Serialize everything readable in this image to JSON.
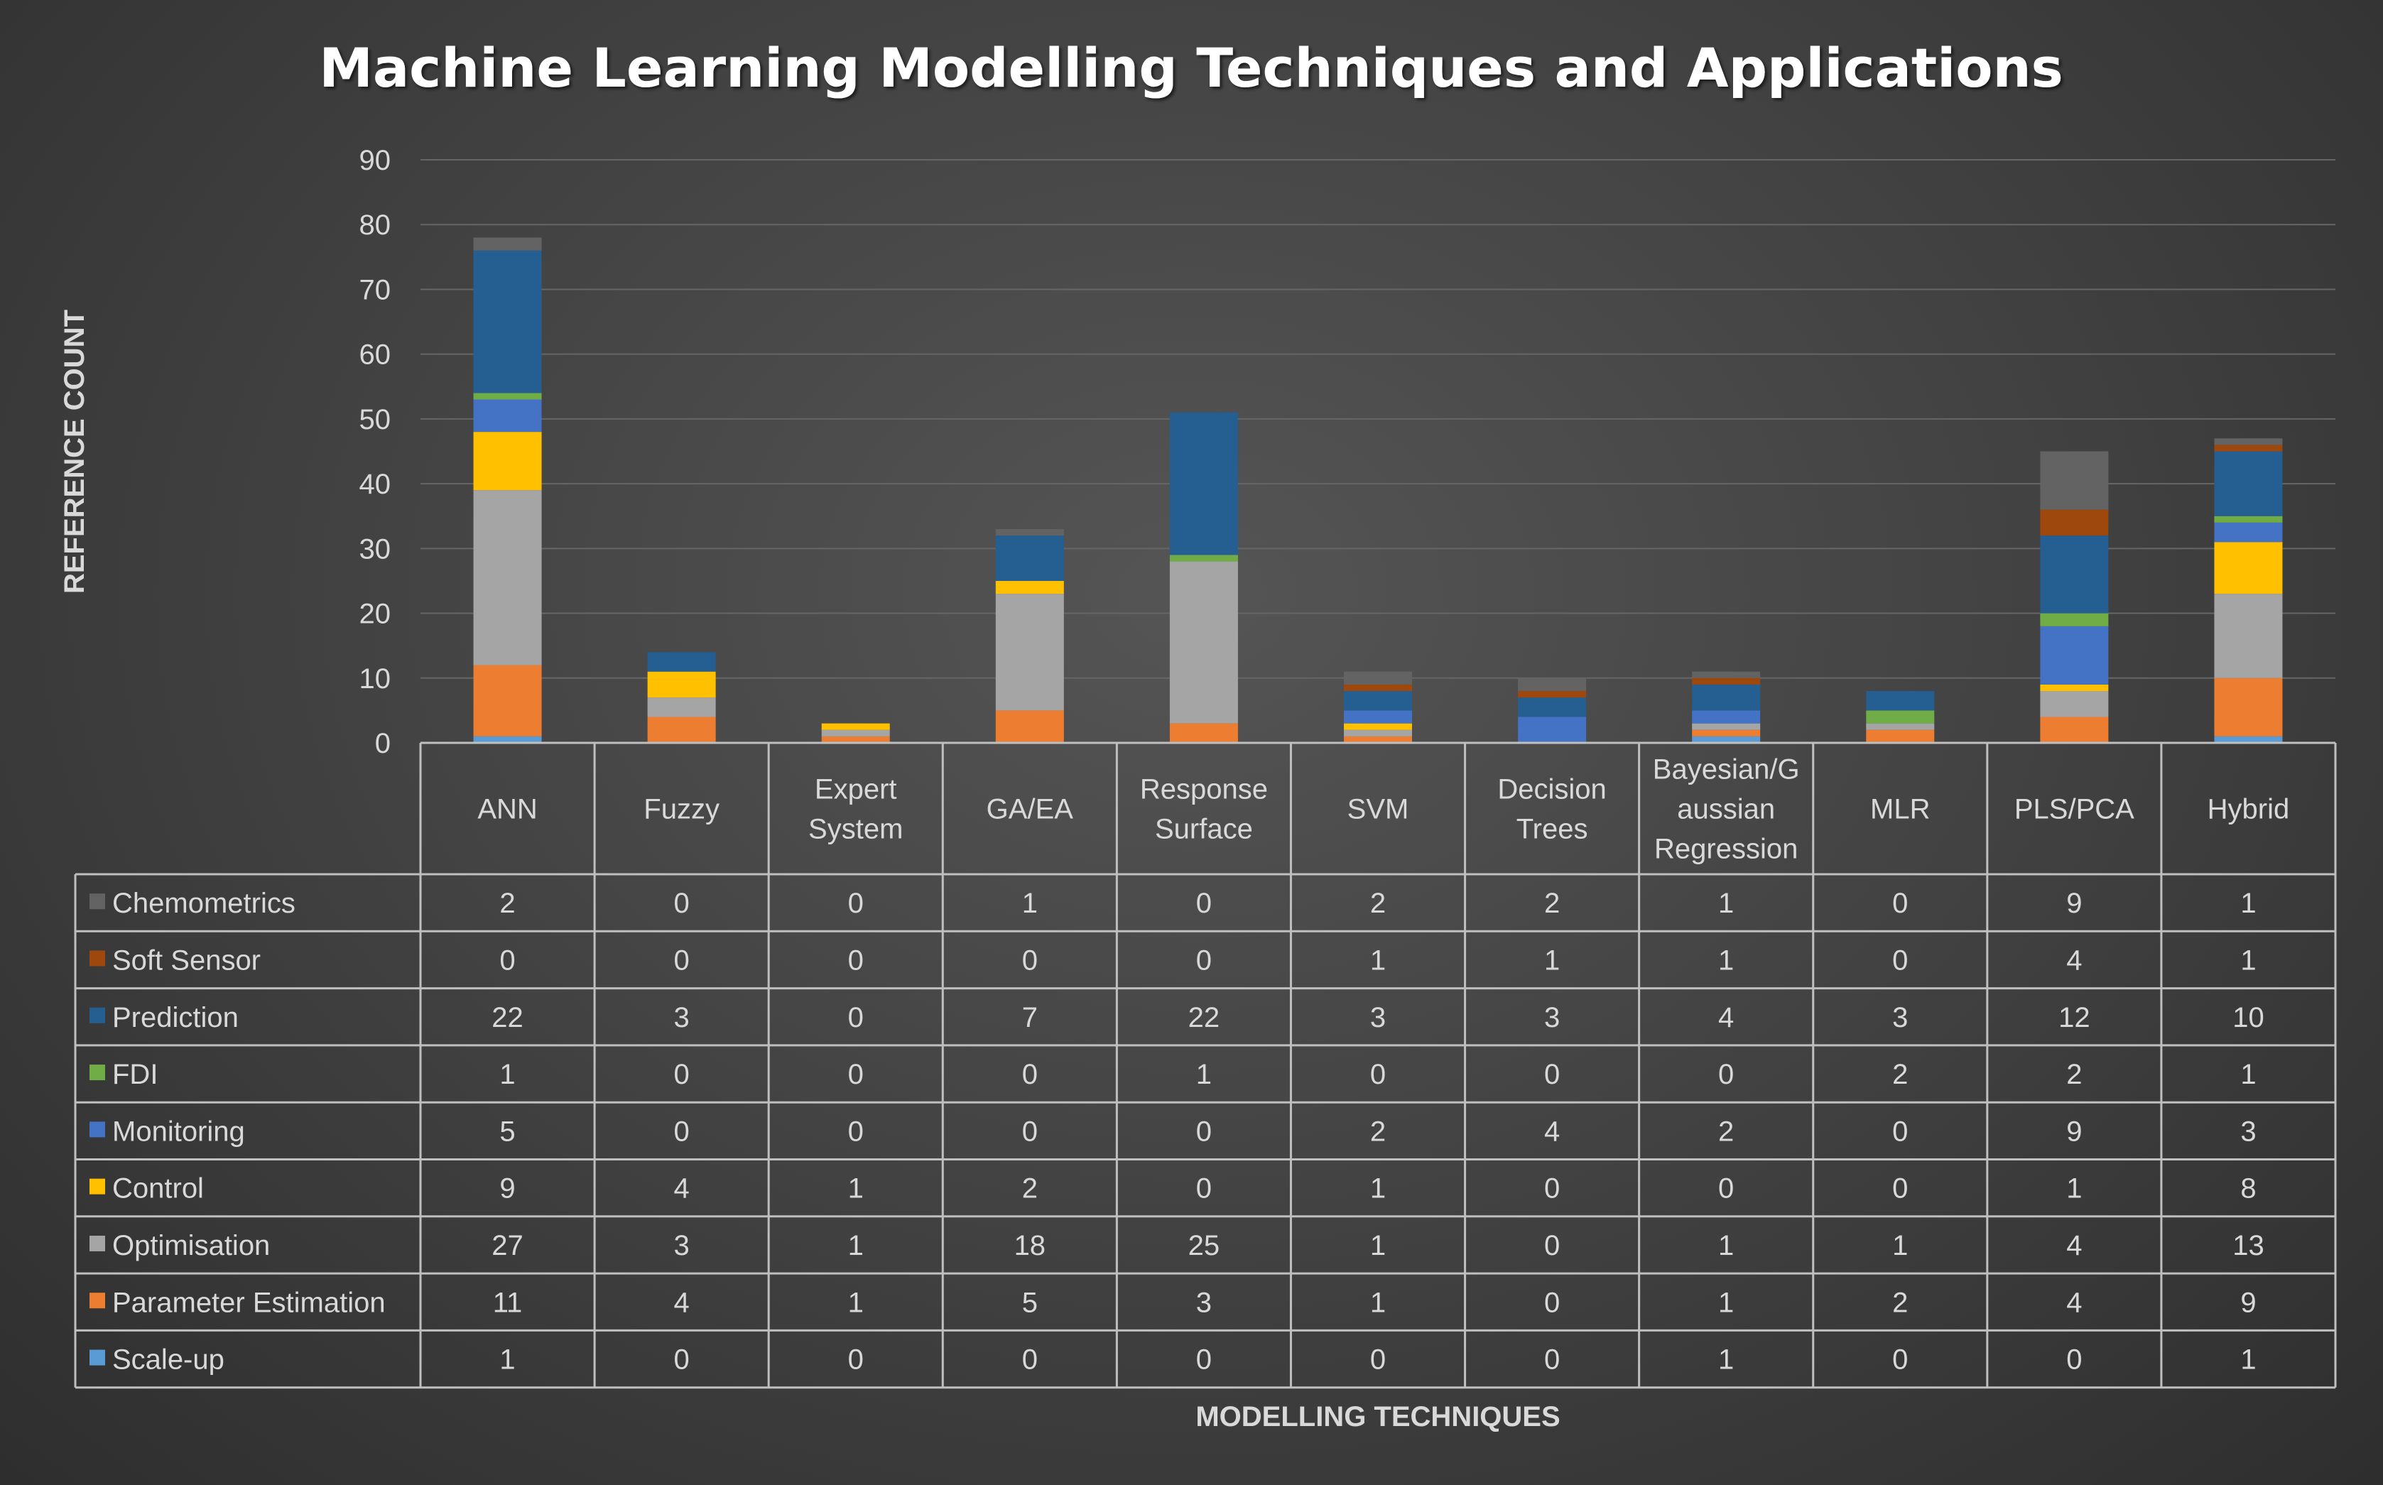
{
  "chart_data": {
    "type": "bar",
    "stacked": true,
    "title": "Machine Learning Modelling Techniques and Applications",
    "xlabel": "MODELLING TECHNIQUES",
    "ylabel": "REFERENCE COUNT",
    "ylim": [
      0,
      90
    ],
    "yticks": [
      0,
      10,
      20,
      30,
      40,
      50,
      60,
      70,
      80,
      90
    ],
    "grid": true,
    "legend": "data-table-left",
    "categories": [
      [
        "ANN"
      ],
      [
        "Fuzzy"
      ],
      [
        "Expert",
        "System"
      ],
      [
        "GA/EA"
      ],
      [
        "Response",
        "Surface"
      ],
      [
        "SVM"
      ],
      [
        "Decision",
        "Trees"
      ],
      [
        "Bayesian/G",
        "aussian",
        "Regression"
      ],
      [
        "MLR"
      ],
      [
        "PLS/PCA"
      ],
      [
        "Hybrid"
      ]
    ],
    "series": [
      {
        "name": "Scale-up",
        "color": "#5B9BD5",
        "values": [
          1,
          0,
          0,
          0,
          0,
          0,
          0,
          1,
          0,
          0,
          1
        ]
      },
      {
        "name": "Parameter Estimation",
        "color": "#ED7D31",
        "values": [
          11,
          4,
          1,
          5,
          3,
          1,
          0,
          1,
          2,
          4,
          9
        ]
      },
      {
        "name": "Optimisation",
        "color": "#A5A5A5",
        "values": [
          27,
          3,
          1,
          18,
          25,
          1,
          0,
          1,
          1,
          4,
          13
        ]
      },
      {
        "name": "Control",
        "color": "#FFC000",
        "values": [
          9,
          4,
          1,
          2,
          0,
          1,
          0,
          0,
          0,
          1,
          8
        ]
      },
      {
        "name": "Monitoring",
        "color": "#4472C4",
        "values": [
          5,
          0,
          0,
          0,
          0,
          2,
          4,
          2,
          0,
          9,
          3
        ]
      },
      {
        "name": "FDI",
        "color": "#70AD47",
        "values": [
          1,
          0,
          0,
          0,
          1,
          0,
          0,
          0,
          2,
          2,
          1
        ]
      },
      {
        "name": "Prediction",
        "color": "#255E91",
        "values": [
          22,
          3,
          0,
          7,
          22,
          3,
          3,
          4,
          3,
          12,
          10
        ]
      },
      {
        "name": "Soft Sensor",
        "color": "#9E480E",
        "values": [
          0,
          0,
          0,
          0,
          0,
          1,
          1,
          1,
          0,
          4,
          1
        ]
      },
      {
        "name": "Chemometrics",
        "color": "#636363",
        "values": [
          2,
          0,
          0,
          1,
          0,
          2,
          2,
          1,
          0,
          9,
          1
        ]
      }
    ]
  }
}
